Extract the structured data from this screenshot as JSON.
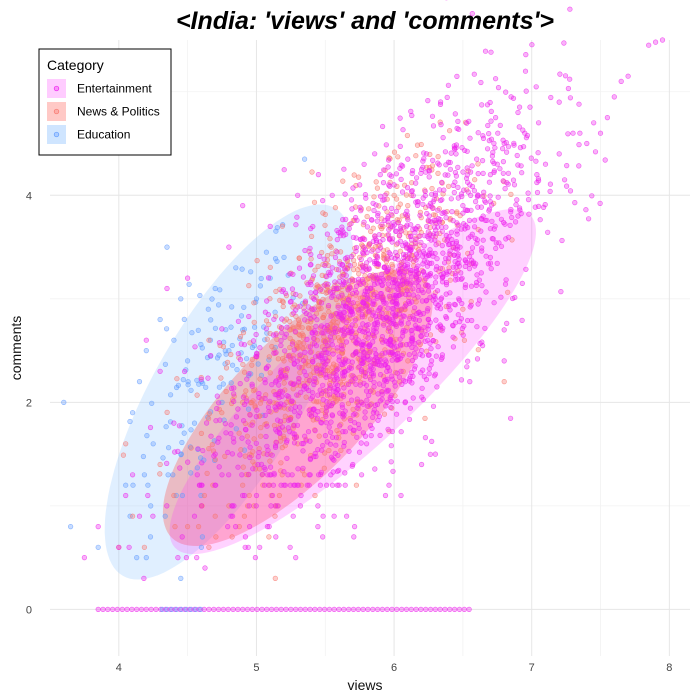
{
  "chart_data": {
    "type": "scatter",
    "title": "<India: 'views' and 'comments'>",
    "xlabel": "views",
    "ylabel": "comments",
    "xlim": [
      3.5,
      8.15
    ],
    "ylim": [
      -0.45,
      5.5
    ],
    "x_ticks": [
      4,
      5,
      6,
      7,
      8
    ],
    "y_ticks": [
      0,
      2,
      4
    ],
    "grid": true,
    "legend": {
      "title": "Category",
      "position": "top-left",
      "entries": [
        "Entertainment",
        "News & Politics",
        "Education"
      ]
    },
    "series": [
      {
        "name": "Entertainment",
        "color": "#ee22ee",
        "ellipse": {
          "cx": 5.7,
          "cy": 2.2,
          "rx": 2.35,
          "ry": 0.62,
          "angle_deg": 43
        },
        "center": [
          5.9,
          2.9
        ],
        "spread": [
          0.55,
          0.9
        ],
        "points": [
          [
            7.95,
            5.5
          ],
          [
            7.9,
            5.48
          ],
          [
            7.7,
            5.15
          ],
          [
            7.65,
            5.1
          ],
          [
            7.6,
            4.95
          ],
          [
            7.55,
            4.75
          ],
          [
            7.45,
            4.7
          ],
          [
            7.4,
            4.5
          ],
          [
            7.35,
            4.6
          ],
          [
            7.3,
            4.6
          ],
          [
            7.2,
            4.4
          ],
          [
            7.1,
            4.3
          ],
          [
            7.05,
            4.7
          ],
          [
            6.95,
            4.6
          ],
          [
            6.9,
            4.8
          ],
          [
            6.85,
            4.95
          ],
          [
            6.8,
            4.5
          ],
          [
            6.75,
            4.3
          ],
          [
            6.7,
            4.2
          ],
          [
            6.65,
            4.55
          ],
          [
            6.6,
            4.35
          ],
          [
            6.55,
            4.1
          ],
          [
            6.5,
            3.9
          ],
          [
            7.85,
            5.45
          ],
          [
            6.9,
            3.8
          ],
          [
            6.8,
            2.7
          ],
          [
            6.8,
            2.4
          ],
          [
            6.7,
            3.4
          ],
          [
            7.2,
            4.9
          ],
          [
            6.45,
            4.4
          ],
          [
            6.4,
            3.6
          ],
          [
            6.35,
            3.2
          ],
          [
            6.3,
            3.0
          ],
          [
            6.25,
            2.8
          ],
          [
            6.2,
            2.5
          ],
          [
            6.05,
            2.3
          ],
          [
            5.95,
            2.0
          ],
          [
            5.85,
            1.9
          ],
          [
            5.8,
            1.6
          ],
          [
            5.7,
            1.4
          ],
          [
            5.6,
            1.2
          ],
          [
            5.0,
            1.1
          ],
          [
            4.95,
            0.8
          ],
          [
            4.7,
            1.5
          ],
          [
            4.6,
            1.2
          ],
          [
            4.55,
            0.9
          ],
          [
            4.4,
            1.8
          ],
          [
            4.3,
            2.3
          ],
          [
            4.2,
            2.6
          ],
          [
            4.35,
            3.1
          ],
          [
            4.5,
            3.2
          ],
          [
            4.8,
            3.5
          ],
          [
            4.9,
            3.9
          ],
          [
            5.1,
            3.7
          ],
          [
            5.3,
            4.0
          ],
          [
            5.45,
            4.2
          ],
          [
            5.55,
            4.0
          ],
          [
            5.75,
            4.1
          ],
          [
            5.9,
            4.2
          ],
          [
            6.0,
            4.1
          ],
          [
            6.1,
            4.35
          ],
          [
            6.2,
            4.25
          ],
          [
            6.3,
            4.0
          ],
          [
            3.85,
            0.8
          ],
          [
            3.75,
            0.5
          ],
          [
            4.0,
            0.6
          ],
          [
            4.05,
            1.1
          ],
          [
            4.1,
            1.3
          ],
          [
            4.15,
            0.9
          ],
          [
            6.55,
            2.2
          ],
          [
            6.2,
            1.4
          ],
          [
            6.05,
            1.1
          ],
          [
            6.3,
            1.5
          ]
        ]
      },
      {
        "name": "News & Politics",
        "color": "#f8766d",
        "ellipse": {
          "cx": 5.3,
          "cy": 1.95,
          "rx": 1.75,
          "ry": 0.65,
          "angle_deg": 46
        },
        "center": [
          5.6,
          2.7
        ],
        "spread": [
          0.45,
          0.75
        ],
        "points": [
          [
            6.8,
            2.2
          ],
          [
            6.5,
            2.9
          ],
          [
            6.4,
            3.3
          ],
          [
            6.3,
            3.6
          ],
          [
            6.1,
            3.9
          ],
          [
            6.0,
            4.0
          ],
          [
            5.9,
            3.7
          ],
          [
            5.8,
            2.5
          ],
          [
            5.7,
            2.2
          ],
          [
            5.5,
            1.9
          ],
          [
            5.3,
            1.6
          ],
          [
            5.1,
            1.5
          ],
          [
            4.9,
            1.2
          ],
          [
            4.8,
            1.0
          ],
          [
            4.7,
            0.9
          ],
          [
            4.5,
            0.8
          ],
          [
            4.4,
            1.1
          ],
          [
            4.3,
            1.4
          ],
          [
            4.6,
            1.7
          ],
          [
            4.9,
            2.0
          ],
          [
            5.2,
            2.4
          ],
          [
            5.4,
            2.8
          ],
          [
            5.6,
            3.1
          ],
          [
            5.75,
            3.4
          ],
          [
            5.95,
            3.2
          ],
          [
            6.15,
            3.0
          ],
          [
            6.2,
            2.7
          ],
          [
            6.1,
            2.4
          ],
          [
            5.85,
            2.1
          ],
          [
            5.6,
            1.7
          ],
          [
            5.35,
            1.3
          ],
          [
            5.15,
            1.0
          ],
          [
            4.0,
            0.6
          ],
          [
            4.1,
            0.9
          ],
          [
            4.05,
            1.6
          ]
        ]
      },
      {
        "name": "Education",
        "color": "#619cff",
        "ellipse": {
          "cx": 4.8,
          "cy": 2.1,
          "rx": 2.05,
          "ry": 0.72,
          "angle_deg": 60
        },
        "center": [
          4.7,
          2.2
        ],
        "spread": [
          0.3,
          0.7
        ],
        "points": [
          [
            3.6,
            2.0
          ],
          [
            3.65,
            0.8
          ],
          [
            3.85,
            0.6
          ],
          [
            4.05,
            1.2
          ],
          [
            4.1,
            1.9
          ],
          [
            4.15,
            2.2
          ],
          [
            4.2,
            2.5
          ],
          [
            4.25,
            1.6
          ],
          [
            4.3,
            2.8
          ],
          [
            4.4,
            2.6
          ],
          [
            4.45,
            3.0
          ],
          [
            4.5,
            2.4
          ],
          [
            4.55,
            1.8
          ],
          [
            4.6,
            2.2
          ],
          [
            4.65,
            2.9
          ],
          [
            4.7,
            3.1
          ],
          [
            4.75,
            2.0
          ],
          [
            4.8,
            2.5
          ],
          [
            4.85,
            3.3
          ],
          [
            4.9,
            2.7
          ],
          [
            5.0,
            3.0
          ],
          [
            5.1,
            3.2
          ],
          [
            5.2,
            3.4
          ],
          [
            5.35,
            4.35
          ],
          [
            4.35,
            3.5
          ],
          [
            4.2,
            0.5
          ],
          [
            4.45,
            0.3
          ],
          [
            4.6,
            0.6
          ]
        ]
      }
    ],
    "zero_row": {
      "y": 0,
      "x_range": [
        3.85,
        6.55
      ],
      "color": "#ee22ee"
    }
  }
}
